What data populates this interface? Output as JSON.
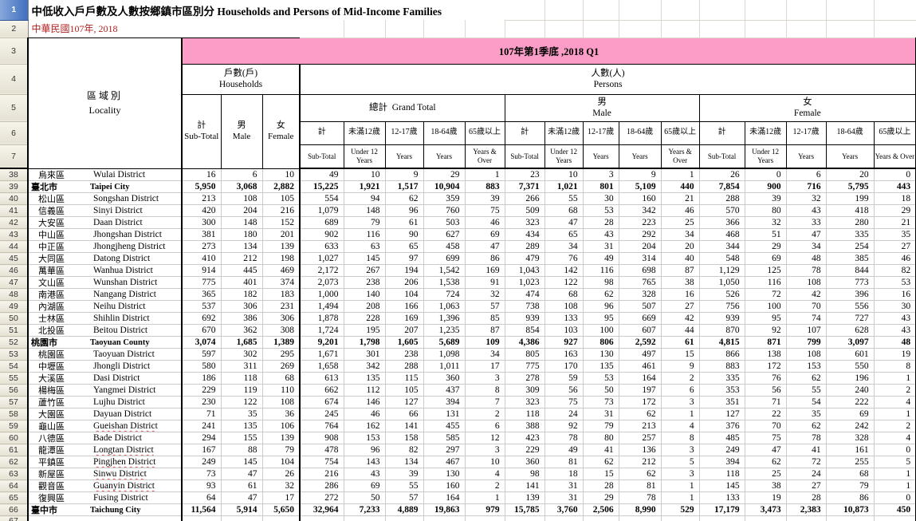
{
  "colors": {
    "period_band": "#FB9DC7",
    "subtitle_red": "#B22222",
    "row_header_selected": "#3F6FC0"
  },
  "sheet": {
    "title": "中低收入戶戶數及人數按鄉鎮市區別分 Households and Persons of Mid-Income Families",
    "subtitle": "中華民國107年, 2018",
    "period": "107年第1季底 ,2018  Q1",
    "header_row_numbers": [
      "1",
      "2",
      "3",
      "4",
      "5",
      "6",
      "7"
    ],
    "partial_row_number": "67",
    "header": {
      "locality_zh": "區域別",
      "locality_en": "Locality",
      "households_zh": "戶數(戶)",
      "households_en": "Households",
      "persons_zh": "人數(人)",
      "persons_en": "Persons",
      "grand_total_zh": "總計",
      "grand_total_en": "Grand Total",
      "male_zh": "男",
      "male_en": "Male",
      "female_zh": "女",
      "female_en": "Female",
      "hh_cols": [
        {
          "zh": "計",
          "en": "Sub-Total"
        },
        {
          "zh": "男",
          "en": "Male"
        },
        {
          "zh": "女",
          "en": "Female"
        }
      ],
      "age_cols": [
        {
          "zh": "計",
          "en": "Sub-Total"
        },
        {
          "zh": "未滿12歲",
          "en": "Under 12 Years"
        },
        {
          "zh": "12-17歲",
          "en": "Years"
        },
        {
          "zh": "18-64歲",
          "en": "Years"
        },
        {
          "zh": "65歲以上",
          "en": "Years & Over"
        }
      ]
    },
    "rows": [
      {
        "num": "38",
        "zh": "烏來區",
        "en": "Wulai District",
        "bold": false,
        "misspell": false,
        "values": [
          "16",
          "6",
          "10",
          "49",
          "10",
          "9",
          "29",
          "1",
          "23",
          "10",
          "3",
          "9",
          "1",
          "26",
          "0",
          "6",
          "20",
          "0"
        ]
      },
      {
        "num": "39",
        "zh": "臺北市",
        "en": "Taipei City",
        "bold": true,
        "misspell": false,
        "values": [
          "5,950",
          "3,068",
          "2,882",
          "15,225",
          "1,921",
          "1,517",
          "10,904",
          "883",
          "7,371",
          "1,021",
          "801",
          "5,109",
          "440",
          "7,854",
          "900",
          "716",
          "5,795",
          "443"
        ]
      },
      {
        "num": "40",
        "zh": "松山區",
        "en": "Songshan District",
        "bold": false,
        "misspell": false,
        "values": [
          "213",
          "108",
          "105",
          "554",
          "94",
          "62",
          "359",
          "39",
          "266",
          "55",
          "30",
          "160",
          "21",
          "288",
          "39",
          "32",
          "199",
          "18"
        ]
      },
      {
        "num": "41",
        "zh": "信義區",
        "en": "Sinyi District",
        "bold": false,
        "misspell": false,
        "values": [
          "420",
          "204",
          "216",
          "1,079",
          "148",
          "96",
          "760",
          "75",
          "509",
          "68",
          "53",
          "342",
          "46",
          "570",
          "80",
          "43",
          "418",
          "29"
        ]
      },
      {
        "num": "42",
        "zh": "大安區",
        "en": "Daan District",
        "bold": false,
        "misspell": false,
        "values": [
          "300",
          "148",
          "152",
          "689",
          "79",
          "61",
          "503",
          "46",
          "323",
          "47",
          "28",
          "223",
          "25",
          "366",
          "32",
          "33",
          "280",
          "21"
        ]
      },
      {
        "num": "43",
        "zh": "中山區",
        "en": "Jhongshan District",
        "bold": false,
        "misspell": false,
        "values": [
          "381",
          "180",
          "201",
          "902",
          "116",
          "90",
          "627",
          "69",
          "434",
          "65",
          "43",
          "292",
          "34",
          "468",
          "51",
          "47",
          "335",
          "35"
        ]
      },
      {
        "num": "44",
        "zh": "中正區",
        "en": "Jhongjheng District",
        "bold": false,
        "misspell": false,
        "values": [
          "273",
          "134",
          "139",
          "633",
          "63",
          "65",
          "458",
          "47",
          "289",
          "34",
          "31",
          "204",
          "20",
          "344",
          "29",
          "34",
          "254",
          "27"
        ]
      },
      {
        "num": "45",
        "zh": "大同區",
        "en": "Datong District",
        "bold": false,
        "misspell": false,
        "values": [
          "410",
          "212",
          "198",
          "1,027",
          "145",
          "97",
          "699",
          "86",
          "479",
          "76",
          "49",
          "314",
          "40",
          "548",
          "69",
          "48",
          "385",
          "46"
        ]
      },
      {
        "num": "46",
        "zh": "萬華區",
        "en": "Wanhua District",
        "bold": false,
        "misspell": false,
        "values": [
          "914",
          "445",
          "469",
          "2,172",
          "267",
          "194",
          "1,542",
          "169",
          "1,043",
          "142",
          "116",
          "698",
          "87",
          "1,129",
          "125",
          "78",
          "844",
          "82"
        ]
      },
      {
        "num": "47",
        "zh": "文山區",
        "en": "Wunshan District",
        "bold": false,
        "misspell": false,
        "values": [
          "775",
          "401",
          "374",
          "2,073",
          "238",
          "206",
          "1,538",
          "91",
          "1,023",
          "122",
          "98",
          "765",
          "38",
          "1,050",
          "116",
          "108",
          "773",
          "53"
        ]
      },
      {
        "num": "48",
        "zh": "南港區",
        "en": "Nangang District",
        "bold": false,
        "misspell": false,
        "values": [
          "365",
          "182",
          "183",
          "1,000",
          "140",
          "104",
          "724",
          "32",
          "474",
          "68",
          "62",
          "328",
          "16",
          "526",
          "72",
          "42",
          "396",
          "16"
        ]
      },
      {
        "num": "49",
        "zh": "內湖區",
        "en": "Neihu District",
        "bold": false,
        "misspell": false,
        "values": [
          "537",
          "306",
          "231",
          "1,494",
          "208",
          "166",
          "1,063",
          "57",
          "738",
          "108",
          "96",
          "507",
          "27",
          "756",
          "100",
          "70",
          "556",
          "30"
        ]
      },
      {
        "num": "50",
        "zh": "士林區",
        "en": "Shihlin District",
        "bold": false,
        "misspell": false,
        "values": [
          "692",
          "386",
          "306",
          "1,878",
          "228",
          "169",
          "1,396",
          "85",
          "939",
          "133",
          "95",
          "669",
          "42",
          "939",
          "95",
          "74",
          "727",
          "43"
        ]
      },
      {
        "num": "51",
        "zh": "北投區",
        "en": "Beitou District",
        "bold": false,
        "misspell": false,
        "values": [
          "670",
          "362",
          "308",
          "1,724",
          "195",
          "207",
          "1,235",
          "87",
          "854",
          "103",
          "100",
          "607",
          "44",
          "870",
          "92",
          "107",
          "628",
          "43"
        ]
      },
      {
        "num": "52",
        "zh": "桃園市",
        "en": "Taoyuan County",
        "bold": true,
        "misspell": false,
        "values": [
          "3,074",
          "1,685",
          "1,389",
          "9,201",
          "1,798",
          "1,605",
          "5,689",
          "109",
          "4,386",
          "927",
          "806",
          "2,592",
          "61",
          "4,815",
          "871",
          "799",
          "3,097",
          "48"
        ]
      },
      {
        "num": "53",
        "zh": "桃園區",
        "en": "Taoyuan District",
        "bold": false,
        "misspell": false,
        "values": [
          "597",
          "302",
          "295",
          "1,671",
          "301",
          "238",
          "1,098",
          "34",
          "805",
          "163",
          "130",
          "497",
          "15",
          "866",
          "138",
          "108",
          "601",
          "19"
        ]
      },
      {
        "num": "54",
        "zh": "中壢區",
        "en": "Jhongli District",
        "bold": false,
        "misspell": false,
        "values": [
          "580",
          "311",
          "269",
          "1,658",
          "342",
          "288",
          "1,011",
          "17",
          "775",
          "170",
          "135",
          "461",
          "9",
          "883",
          "172",
          "153",
          "550",
          "8"
        ]
      },
      {
        "num": "55",
        "zh": "大溪區",
        "en": "Dasi District",
        "bold": false,
        "misspell": false,
        "values": [
          "186",
          "118",
          "68",
          "613",
          "135",
          "115",
          "360",
          "3",
          "278",
          "59",
          "53",
          "164",
          "2",
          "335",
          "76",
          "62",
          "196",
          "1"
        ]
      },
      {
        "num": "56",
        "zh": "楊梅區",
        "en": "Yangmei District",
        "bold": false,
        "misspell": false,
        "values": [
          "229",
          "119",
          "110",
          "662",
          "112",
          "105",
          "437",
          "8",
          "309",
          "56",
          "50",
          "197",
          "6",
          "353",
          "56",
          "55",
          "240",
          "2"
        ]
      },
      {
        "num": "57",
        "zh": "蘆竹區",
        "en": "Lujhu District",
        "bold": false,
        "misspell": false,
        "values": [
          "230",
          "122",
          "108",
          "674",
          "146",
          "127",
          "394",
          "7",
          "323",
          "75",
          "73",
          "172",
          "3",
          "351",
          "71",
          "54",
          "222",
          "4"
        ]
      },
      {
        "num": "58",
        "zh": "大園區",
        "en": "Dayuan District",
        "bold": false,
        "misspell": false,
        "values": [
          "71",
          "35",
          "36",
          "245",
          "46",
          "66",
          "131",
          "2",
          "118",
          "24",
          "31",
          "62",
          "1",
          "127",
          "22",
          "35",
          "69",
          "1"
        ]
      },
      {
        "num": "59",
        "zh": "龜山區",
        "en": "Gueishan District",
        "bold": false,
        "misspell": true,
        "values": [
          "241",
          "135",
          "106",
          "764",
          "162",
          "141",
          "455",
          "6",
          "388",
          "92",
          "79",
          "213",
          "4",
          "376",
          "70",
          "62",
          "242",
          "2"
        ]
      },
      {
        "num": "60",
        "zh": "八德區",
        "en": "Bade District",
        "bold": false,
        "misspell": false,
        "values": [
          "294",
          "155",
          "139",
          "908",
          "153",
          "158",
          "585",
          "12",
          "423",
          "78",
          "80",
          "257",
          "8",
          "485",
          "75",
          "78",
          "328",
          "4"
        ]
      },
      {
        "num": "61",
        "zh": "龍潭區",
        "en": "Longtan District",
        "bold": false,
        "misspell": true,
        "values": [
          "167",
          "88",
          "79",
          "478",
          "96",
          "82",
          "297",
          "3",
          "229",
          "49",
          "41",
          "136",
          "3",
          "249",
          "47",
          "41",
          "161",
          "0"
        ]
      },
      {
        "num": "62",
        "zh": "平鎮區",
        "en": "Pingjhen District",
        "bold": false,
        "misspell": true,
        "values": [
          "249",
          "145",
          "104",
          "754",
          "143",
          "134",
          "467",
          "10",
          "360",
          "81",
          "62",
          "212",
          "5",
          "394",
          "62",
          "72",
          "255",
          "5"
        ]
      },
      {
        "num": "63",
        "zh": "新屋區",
        "en": "Sinwu District",
        "bold": false,
        "misspell": true,
        "values": [
          "73",
          "47",
          "26",
          "216",
          "43",
          "39",
          "130",
          "4",
          "98",
          "18",
          "15",
          "62",
          "3",
          "118",
          "25",
          "24",
          "68",
          "1"
        ]
      },
      {
        "num": "64",
        "zh": "觀音區",
        "en": "Guanyin District",
        "bold": false,
        "misspell": true,
        "values": [
          "93",
          "61",
          "32",
          "286",
          "69",
          "55",
          "160",
          "2",
          "141",
          "31",
          "28",
          "81",
          "1",
          "145",
          "38",
          "27",
          "79",
          "1"
        ]
      },
      {
        "num": "65",
        "zh": "復興區",
        "en": "Fusing District",
        "bold": false,
        "misspell": false,
        "values": [
          "64",
          "47",
          "17",
          "272",
          "50",
          "57",
          "164",
          "1",
          "139",
          "31",
          "29",
          "78",
          "1",
          "133",
          "19",
          "28",
          "86",
          "0"
        ]
      },
      {
        "num": "66",
        "zh": "臺中市",
        "en": "Taichung City",
        "bold": true,
        "misspell": false,
        "values": [
          "11,564",
          "5,914",
          "5,650",
          "32,964",
          "7,233",
          "4,889",
          "19,863",
          "979",
          "15,785",
          "3,760",
          "2,506",
          "8,990",
          "529",
          "17,179",
          "3,473",
          "2,383",
          "10,873",
          "450"
        ]
      }
    ]
  }
}
